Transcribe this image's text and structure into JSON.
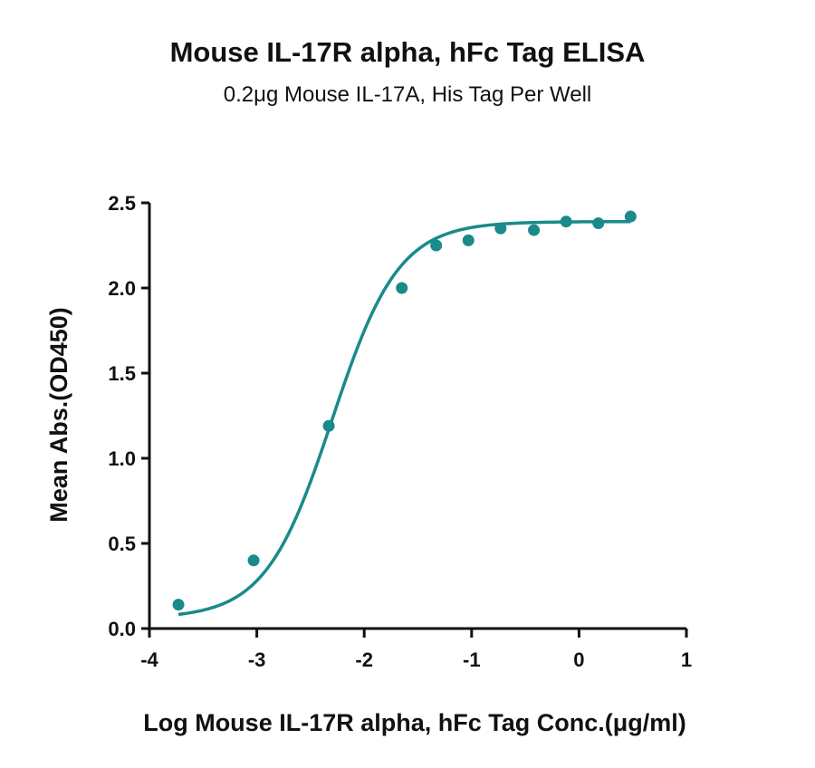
{
  "chart_data": {
    "type": "scatter",
    "title": "Mouse IL-17R alpha, hFc Tag ELISA",
    "subtitle": "0.2μg Mouse IL-17A, His Tag Per Well",
    "xlabel": "Log Mouse IL-17R alpha, hFc Tag Conc.(μg/ml)",
    "ylabel": "Mean Abs.(OD450)",
    "xlim": [
      -4,
      1
    ],
    "ylim": [
      0,
      2.5
    ],
    "x_ticks": [
      -4,
      -3,
      -2,
      -1,
      0,
      1
    ],
    "x_tick_labels": [
      "-4",
      "-3",
      "-2",
      "-1",
      "0",
      "1"
    ],
    "y_ticks": [
      0,
      0.5,
      1,
      1.5,
      2,
      2.5
    ],
    "y_tick_labels": [
      "0.0",
      "0.5",
      "1.0",
      "1.5",
      "2.0",
      "2.5"
    ],
    "grid": false,
    "color": "#1a8a8a",
    "points": {
      "x": [
        -3.73,
        -3.03,
        -2.33,
        -1.65,
        -1.33,
        -1.03,
        -0.73,
        -0.42,
        -0.12,
        0.18,
        0.48
      ],
      "y": [
        0.14,
        0.4,
        1.19,
        2.0,
        2.25,
        2.28,
        2.35,
        2.34,
        2.39,
        2.38,
        2.42
      ]
    },
    "fit_curve": {
      "model": "4PL",
      "bottom": 0.06,
      "top": 2.39,
      "log_ec50": -2.3,
      "hill_slope": 1.4
    }
  }
}
